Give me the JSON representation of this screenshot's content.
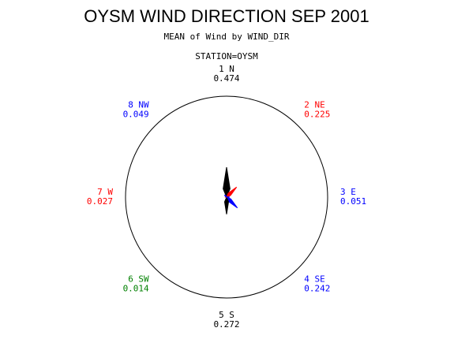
{
  "chart_data": {
    "type": "star",
    "title": "OYSM WIND DIRECTION SEP 2001",
    "subtitle": "MEAN of Wind by WIND_DIR",
    "group_label": "STATION=OYSM",
    "categories": [
      "1 N",
      "2 NE",
      "3 E",
      "4 SE",
      "5 S",
      "6 SW",
      "7 W",
      "8 NW"
    ],
    "values": [
      0.474,
      0.225,
      0.051,
      0.242,
      0.272,
      0.014,
      0.027,
      0.049
    ],
    "colors": [
      "#000000",
      "#ff0000",
      "#0000ff",
      "#0000ff",
      "#000000",
      "#008000",
      "#ff0000",
      "#0000ff"
    ],
    "rlim": [
      0,
      1.6
    ]
  }
}
